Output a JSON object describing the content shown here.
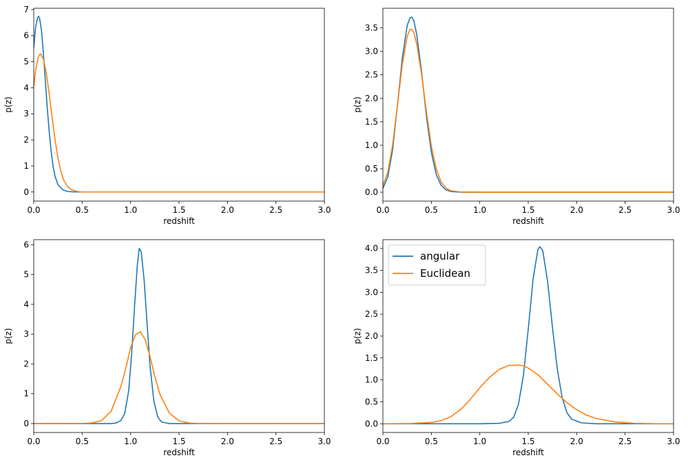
{
  "chart_data": [
    {
      "type": "line",
      "panel": "top-left",
      "xlabel": "redshift",
      "ylabel": "p(z)",
      "xlim": [
        0,
        3.0
      ],
      "ylim": [
        -0.35,
        7.05
      ],
      "xticks": [
        0.0,
        0.5,
        1.0,
        1.5,
        2.0,
        2.5,
        3.0
      ],
      "xtick_labels": [
        "0.0",
        "0.5",
        "1.0",
        "1.5",
        "2.0",
        "2.5",
        "3.0"
      ],
      "yticks": [
        0,
        1,
        2,
        3,
        4,
        5,
        6,
        7
      ],
      "ytick_labels": [
        "0",
        "1",
        "2",
        "3",
        "4",
        "5",
        "6",
        "7"
      ],
      "legend": null,
      "series": [
        {
          "name": "angular",
          "color": "#1f77b4",
          "x": [
            0,
            0.02,
            0.04,
            0.05,
            0.06,
            0.08,
            0.1,
            0.12,
            0.14,
            0.16,
            0.18,
            0.2,
            0.22,
            0.25,
            0.3,
            0.35,
            0.4,
            0.5,
            1.0,
            2.0,
            3.0
          ],
          "y": [
            5.55,
            6.35,
            6.7,
            6.74,
            6.68,
            6.2,
            5.3,
            4.25,
            3.2,
            2.3,
            1.55,
            0.98,
            0.6,
            0.28,
            0.08,
            0.02,
            0.005,
            0,
            0,
            0,
            0
          ]
        },
        {
          "name": "Euclidean",
          "color": "#ff7f0e",
          "x": [
            0,
            0.02,
            0.05,
            0.07,
            0.1,
            0.13,
            0.16,
            0.19,
            0.22,
            0.25,
            0.28,
            0.31,
            0.35,
            0.4,
            0.45,
            0.5,
            1.0,
            2.0,
            3.0
          ],
          "y": [
            4.05,
            4.7,
            5.22,
            5.3,
            5.1,
            4.55,
            3.75,
            2.85,
            2.0,
            1.3,
            0.8,
            0.45,
            0.2,
            0.07,
            0.02,
            0,
            0,
            0,
            0
          ]
        }
      ]
    },
    {
      "type": "line",
      "panel": "top-right",
      "xlabel": "redshift",
      "ylabel": "p(z)",
      "xlim": [
        0,
        3.0
      ],
      "ylim": [
        -0.19,
        3.92
      ],
      "xticks": [
        0.0,
        0.5,
        1.0,
        1.5,
        2.0,
        2.5,
        3.0
      ],
      "xtick_labels": [
        "0.0",
        "0.5",
        "1.0",
        "1.5",
        "2.0",
        "2.5",
        "3.0"
      ],
      "yticks": [
        0,
        0.5,
        1.0,
        1.5,
        2.0,
        2.5,
        3.0,
        3.5
      ],
      "ytick_labels": [
        "0.0",
        "0.5",
        "1.0",
        "1.5",
        "2.0",
        "2.5",
        "3.0",
        "3.5"
      ],
      "legend": null,
      "series": [
        {
          "name": "angular",
          "color": "#1f77b4",
          "x": [
            0,
            0.05,
            0.1,
            0.15,
            0.2,
            0.25,
            0.28,
            0.3,
            0.32,
            0.35,
            0.4,
            0.45,
            0.5,
            0.55,
            0.6,
            0.65,
            0.7,
            0.8,
            1.0,
            2.0,
            3.0
          ],
          "y": [
            0.08,
            0.32,
            0.9,
            1.85,
            2.85,
            3.55,
            3.72,
            3.73,
            3.65,
            3.35,
            2.55,
            1.6,
            0.85,
            0.38,
            0.15,
            0.05,
            0.015,
            0,
            0,
            0,
            0
          ]
        },
        {
          "name": "Euclidean",
          "color": "#ff7f0e",
          "x": [
            0,
            0.05,
            0.1,
            0.15,
            0.2,
            0.25,
            0.28,
            0.3,
            0.32,
            0.35,
            0.4,
            0.45,
            0.5,
            0.55,
            0.6,
            0.65,
            0.7,
            0.8,
            1.0,
            2.0,
            3.0
          ],
          "y": [
            0.14,
            0.42,
            1.0,
            1.85,
            2.72,
            3.32,
            3.47,
            3.47,
            3.4,
            3.15,
            2.5,
            1.7,
            0.98,
            0.5,
            0.22,
            0.09,
            0.03,
            0.005,
            0,
            0,
            0
          ]
        }
      ]
    },
    {
      "type": "line",
      "panel": "bottom-left",
      "xlabel": "redshift",
      "ylabel": "p(z)",
      "xlim": [
        0,
        3.0
      ],
      "ylim": [
        -0.3,
        6.17
      ],
      "xticks": [
        0.0,
        0.5,
        1.0,
        1.5,
        2.0,
        2.5,
        3.0
      ],
      "xtick_labels": [
        "0.0",
        "0.5",
        "1.0",
        "1.5",
        "2.0",
        "2.5",
        "3.0"
      ],
      "yticks": [
        0,
        1,
        2,
        3,
        4,
        5,
        6
      ],
      "ytick_labels": [
        "0",
        "1",
        "2",
        "3",
        "4",
        "5",
        "6"
      ],
      "legend": null,
      "series": [
        {
          "name": "angular",
          "color": "#1f77b4",
          "x": [
            0,
            0.5,
            0.8,
            0.85,
            0.9,
            0.94,
            0.98,
            1.01,
            1.04,
            1.07,
            1.09,
            1.11,
            1.14,
            1.17,
            1.2,
            1.24,
            1.28,
            1.32,
            1.4,
            2.0,
            3.0
          ],
          "y": [
            0,
            0,
            0,
            0.02,
            0.1,
            0.35,
            1.1,
            2.3,
            3.9,
            5.35,
            5.88,
            5.75,
            4.8,
            3.35,
            1.95,
            0.75,
            0.22,
            0.05,
            0,
            0,
            0
          ]
        },
        {
          "name": "Euclidean",
          "color": "#ff7f0e",
          "x": [
            0,
            0.5,
            0.6,
            0.7,
            0.8,
            0.9,
            0.95,
            1.0,
            1.05,
            1.1,
            1.15,
            1.2,
            1.25,
            1.3,
            1.4,
            1.5,
            1.6,
            1.7,
            2.0,
            3.0
          ],
          "y": [
            0,
            0.005,
            0.02,
            0.1,
            0.42,
            1.25,
            1.85,
            2.55,
            2.98,
            3.08,
            2.82,
            2.25,
            1.58,
            1.0,
            0.35,
            0.09,
            0.02,
            0.003,
            0,
            0
          ]
        }
      ]
    },
    {
      "type": "line",
      "panel": "bottom-right",
      "xlabel": "redshift",
      "ylabel": "p(z)",
      "xlim": [
        0,
        3.0
      ],
      "ylim": [
        -0.2,
        4.2
      ],
      "xticks": [
        0.0,
        0.5,
        1.0,
        1.5,
        2.0,
        2.5,
        3.0
      ],
      "xtick_labels": [
        "0.0",
        "0.5",
        "1.0",
        "1.5",
        "2.0",
        "2.5",
        "3.0"
      ],
      "yticks": [
        0,
        0.5,
        1.0,
        1.5,
        2.0,
        2.5,
        3.0,
        3.5,
        4.0
      ],
      "ytick_labels": [
        "0.0",
        "0.5",
        "1.0",
        "1.5",
        "2.0",
        "2.5",
        "3.0",
        "3.5",
        "4.0"
      ],
      "legend": {
        "placement": "upper-left",
        "entries": [
          {
            "label": "angular",
            "color": "#1f77b4"
          },
          {
            "label": "Euclidean",
            "color": "#ff7f0e"
          }
        ]
      },
      "series": [
        {
          "name": "angular",
          "color": "#1f77b4",
          "x": [
            0,
            1.0,
            1.2,
            1.3,
            1.35,
            1.4,
            1.45,
            1.5,
            1.55,
            1.6,
            1.62,
            1.65,
            1.7,
            1.75,
            1.8,
            1.85,
            1.9,
            1.95,
            2.05,
            2.2,
            3.0
          ],
          "y": [
            0,
            0,
            0.01,
            0.05,
            0.15,
            0.45,
            1.1,
            2.15,
            3.3,
            3.98,
            4.04,
            3.95,
            3.25,
            2.2,
            1.25,
            0.6,
            0.25,
            0.1,
            0.02,
            0,
            0
          ]
        },
        {
          "name": "Euclidean",
          "color": "#ff7f0e",
          "x": [
            0,
            0.3,
            0.5,
            0.6,
            0.7,
            0.8,
            0.9,
            1.0,
            1.1,
            1.2,
            1.3,
            1.4,
            1.45,
            1.5,
            1.6,
            1.7,
            1.8,
            1.9,
            2.0,
            2.1,
            2.2,
            2.4,
            2.6,
            2.8,
            3.0
          ],
          "y": [
            0,
            0.005,
            0.03,
            0.07,
            0.16,
            0.32,
            0.55,
            0.82,
            1.06,
            1.24,
            1.33,
            1.34,
            1.32,
            1.27,
            1.12,
            0.9,
            0.68,
            0.48,
            0.32,
            0.2,
            0.12,
            0.04,
            0.01,
            0.002,
            0
          ]
        }
      ]
    }
  ]
}
